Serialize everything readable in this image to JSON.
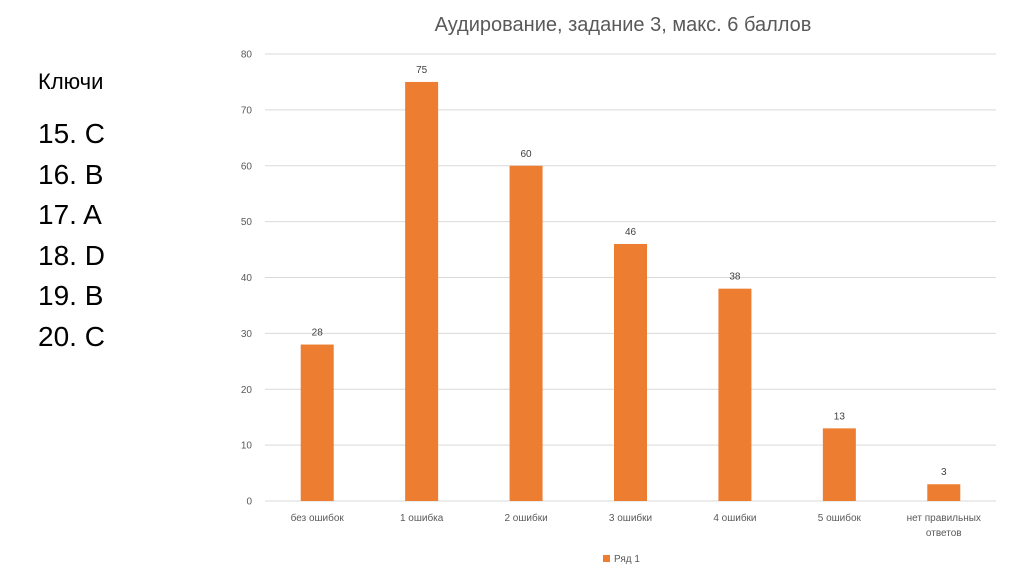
{
  "keys": {
    "title": "Ключи",
    "items": [
      "15. C",
      "16. B",
      "17. A",
      "18. D",
      "19. B",
      "20. C"
    ]
  },
  "chart_data": {
    "type": "bar",
    "title": "Аудирование, задание 3, макс. 6 баллов",
    "xlabel": "",
    "ylabel": "",
    "ylim": [
      0,
      80
    ],
    "yticks": [
      0,
      10,
      20,
      30,
      40,
      50,
      60,
      70,
      80
    ],
    "grid": true,
    "legend_position": "bottom",
    "categories": [
      [
        "без ошибок"
      ],
      [
        "1 ошибка"
      ],
      [
        "2 ошибки"
      ],
      [
        "3 ошибки"
      ],
      [
        "4 ошибки"
      ],
      [
        "5 ошибок"
      ],
      [
        "нет правильных",
        "ответов"
      ]
    ],
    "series": [
      {
        "name": "Ряд 1",
        "color": "#ED7D31",
        "values": [
          28,
          75,
          60,
          46,
          38,
          13,
          3
        ]
      }
    ]
  }
}
